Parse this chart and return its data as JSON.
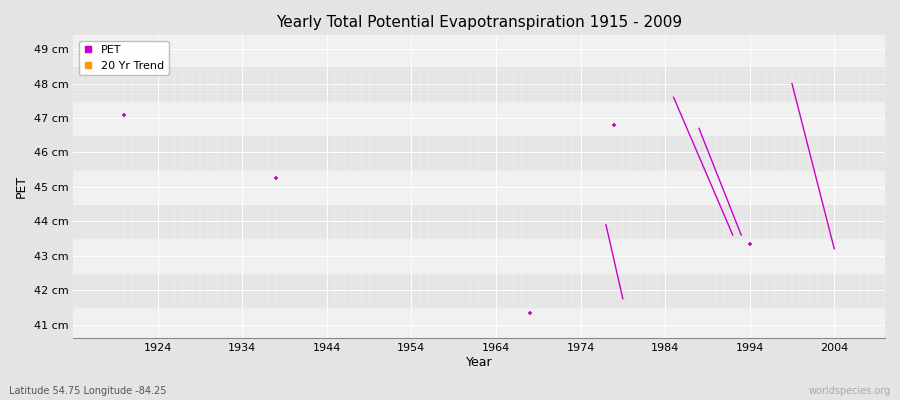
{
  "title": "Yearly Total Potential Evapotranspiration 1915 - 2009",
  "xlabel": "Year",
  "ylabel": "PET",
  "subtitle": "Latitude 54.75 Longitude -84.25",
  "watermark": "worldspecies.org",
  "xlim": [
    1914,
    2010
  ],
  "ylim": [
    40.6,
    49.4
  ],
  "yticks": [
    41,
    42,
    43,
    44,
    45,
    46,
    47,
    48,
    49
  ],
  "ytick_labels": [
    "41 cm",
    "42 cm",
    "43 cm",
    "44 cm",
    "45 cm",
    "46 cm",
    "47 cm",
    "48 cm",
    "49 cm"
  ],
  "xticks": [
    1924,
    1934,
    1944,
    1954,
    1964,
    1974,
    1984,
    1994,
    2004
  ],
  "pet_color": "#cc00cc",
  "trend_color": "#ff9900",
  "bg_color": "#e4e4e4",
  "band_color_light": "#f0f0f0",
  "band_color_dark": "#e4e4e4",
  "pet_points": [
    [
      1920,
      47.1
    ],
    [
      1938,
      45.25
    ],
    [
      1968,
      41.35
    ],
    [
      1978,
      46.8
    ],
    [
      1994,
      43.35
    ]
  ],
  "trend_segments": [
    [
      [
        1977,
        43.9
      ],
      [
        1979,
        41.75
      ]
    ],
    [
      [
        1985,
        47.6
      ],
      [
        1992,
        43.6
      ]
    ],
    [
      [
        1988,
        46.7
      ],
      [
        1993,
        43.6
      ]
    ],
    [
      [
        1999,
        48.0
      ],
      [
        2004,
        43.2
      ]
    ]
  ]
}
